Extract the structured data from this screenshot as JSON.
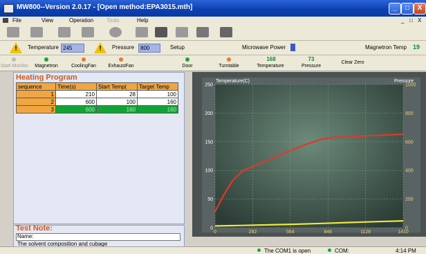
{
  "window": {
    "title": "MW800--Version 2.0.17 - [Open method:EPA3015.mth]",
    "buttons": [
      "_",
      "□",
      "X"
    ]
  },
  "menu": {
    "items": [
      "File",
      "View",
      "Operation",
      "Tools",
      "Help"
    ],
    "mdi_controls": [
      "_",
      "□",
      "X"
    ]
  },
  "status_row": {
    "temperature_label": "Temperature",
    "temperature_value": "245",
    "pressure_label": "Pressure",
    "pressure_value": "800",
    "setup_label": "Setup",
    "microwave_label": "Microwave Power",
    "magnetron_temp_label": "Magnetron Temp",
    "magnetron_temp_value": "19"
  },
  "indicators": {
    "start_monitor": "Start Monitor",
    "magnetron": "Magnetron",
    "cooling_fan": "CoolingFan",
    "exhaust_fan": "ExhaustFan",
    "door": "Door",
    "turntable": "Turntable",
    "temperature_value": "168",
    "temperature_label": "Temperature",
    "pressure_value": "73",
    "pressure_label": "Pressure",
    "clear_zero": "Clear Zero",
    "colors": {
      "magnetron": "#19a13a",
      "cooling_fan": "#e87a2a",
      "exhaust_fan": "#e87a2a",
      "door": "#19a13a",
      "turntable": "#e87a2a"
    }
  },
  "heating_program": {
    "title": "Heating Program",
    "columns": [
      "sequence",
      "Time(s)",
      "Start Temp(",
      "Target Temp"
    ],
    "rows": [
      {
        "seq": "1",
        "time": "210",
        "start": "28",
        "target": "100"
      },
      {
        "seq": "2",
        "time": "600",
        "start": "100",
        "target": "160"
      },
      {
        "seq": "3",
        "time": "600",
        "start": "160",
        "target": "160"
      }
    ],
    "selected_row": 2
  },
  "test_note": {
    "title": "Test Note:",
    "name_label": "Name:",
    "text": "The solvent composition and cubage"
  },
  "chart_data": {
    "type": "line",
    "title": "",
    "ylabel_left": "Temperature(C)",
    "ylabel_right": "Pressure",
    "xlim": [
      0,
      1410
    ],
    "ylim_left": [
      0,
      250
    ],
    "ylim_right": [
      0,
      1000
    ],
    "x_ticks": [
      "0",
      "282",
      "564",
      "846",
      "1128",
      "1410"
    ],
    "y_ticks_left": [
      "0",
      "50",
      "100",
      "150",
      "200",
      "250"
    ],
    "y_ticks_right": [
      "0",
      "200",
      "400",
      "600",
      "800",
      "1000"
    ],
    "grid": true,
    "series": [
      {
        "color": "#e0382a",
        "axis": "left",
        "x": [
          0,
          60,
          130,
          210,
          300,
          420,
          560,
          700,
          810,
          900,
          1000,
          1100,
          1200,
          1300,
          1410
        ],
        "y": [
          28,
          55,
          82,
          100,
          108,
          120,
          134,
          147,
          155,
          158,
          158,
          160,
          161,
          162,
          163
        ]
      },
      {
        "color": "#f2e63a",
        "axis": "left",
        "x": [
          0,
          100,
          210,
          400,
          600,
          800,
          1000,
          1200,
          1410
        ],
        "y": [
          3,
          3.5,
          4,
          5,
          6,
          7.5,
          9,
          10.5,
          12
        ]
      }
    ]
  },
  "statusbar": {
    "com_open": "The COM1 is open",
    "com_label": "COM:",
    "time": "4:14 PM"
  }
}
